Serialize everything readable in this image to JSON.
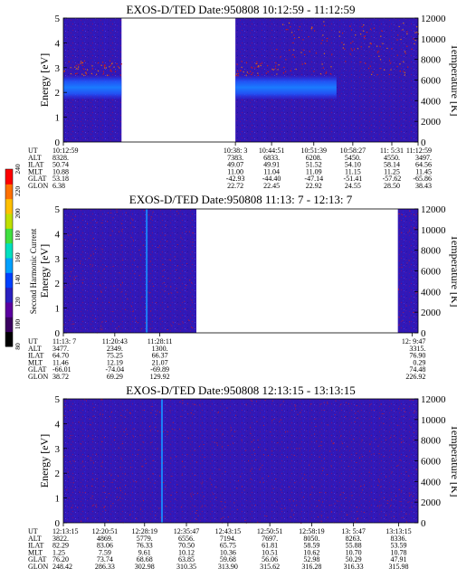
{
  "colorbar": {
    "label": "Second Harmonic Current",
    "ticks": [
      "80",
      "100",
      "120",
      "140",
      "160",
      "180",
      "200",
      "220",
      "240"
    ],
    "colors": [
      "#000000",
      "#3a0060",
      "#5a00a0",
      "#2a20c0",
      "#0040ff",
      "#00a0ff",
      "#00e0c0",
      "#40e040",
      "#c0e000",
      "#ffc000",
      "#ff7000",
      "#ff0000"
    ]
  },
  "chart_data": [
    {
      "type": "heatmap",
      "title": "EXOS-D/TED   Date:950808   10:12:59 - 11:12:59",
      "ylabel": "Energy [eV]",
      "y2label": "Temperature [K]",
      "ylim": [
        0,
        5
      ],
      "y2lim": [
        0,
        12000
      ],
      "yticks": [
        "0",
        "1",
        "2",
        "3",
        "4",
        "5"
      ],
      "y2ticks": [
        "0",
        "2000",
        "4000",
        "6000",
        "8000",
        "10000",
        "12000"
      ],
      "data_segments": [
        [
          0,
          0.164
        ],
        [
          0.485,
          1.0
        ]
      ],
      "band": {
        "center": 2.2,
        "width": 0.5,
        "end": 0.77
      },
      "table": {
        "row_labels": [
          "UT",
          "ALT",
          "ILAT",
          "MLT",
          "GLAT",
          "GLON"
        ],
        "columns": [
          {
            "x": 0.0,
            "values": [
              "10:12:59",
              "8328.",
              "50.74",
              "10.88",
              "53.18",
              "6.38"
            ]
          },
          {
            "x": 0.485,
            "values": [
              "10:38: 3",
              "7383.",
              "49.07",
              "11.00",
              "-42.93",
              "22.72"
            ]
          },
          {
            "x": 0.587,
            "values": [
              "10:44:51",
              "6833.",
              "49.91",
              "11.04",
              "-44.40",
              "22.45"
            ]
          },
          {
            "x": 0.706,
            "values": [
              "10:51:39",
              "6208.",
              "51.52",
              "11.09",
              "-47.14",
              "22.92"
            ]
          },
          {
            "x": 0.816,
            "values": [
              "10:58:27",
              "5450.",
              "54.10",
              "11.15",
              "-51.41",
              "24.55"
            ]
          },
          {
            "x": 0.926,
            "values": [
              "11: 5:31",
              "4550.",
              "58.14",
              "11.25",
              "-57.62",
              "28.50"
            ]
          },
          {
            "x": 1.0,
            "values": [
              "11:12:59",
              "3497.",
              "64.56",
              "11.45",
              "-65.86",
              "38.43"
            ]
          }
        ]
      }
    },
    {
      "type": "heatmap",
      "title": "EXOS-D/TED   Date:950808   11:13: 7 - 12:13: 7",
      "ylabel": "Energy [eV]",
      "y2label": "Temperature [K]",
      "ylim": [
        0,
        5
      ],
      "y2lim": [
        0,
        12000
      ],
      "yticks": [
        "0",
        "1",
        "2",
        "3",
        "4",
        "5"
      ],
      "y2ticks": [
        "0",
        "2000",
        "4000",
        "6000",
        "8000",
        "10000",
        "12000"
      ],
      "data_segments": [
        [
          0,
          0.375
        ],
        [
          0.943,
          1.0
        ]
      ],
      "spike": 0.235,
      "table": {
        "row_labels": [
          "UT",
          "ALT",
          "ILAT",
          "MLT",
          "GLAT",
          "GLON"
        ],
        "columns": [
          {
            "x": 0.0,
            "values": [
              "11:13: 7",
              "3477.",
              "64.70",
              "11.46",
              "-66.01",
              "38.72"
            ]
          },
          {
            "x": 0.145,
            "values": [
              "11:20:43",
              "2349.",
              "75.25",
              "12.19",
              "-74.04",
              "69.29"
            ]
          },
          {
            "x": 0.272,
            "values": [
              "11:28:11",
              "1300.",
              "66.37",
              "21.07",
              "-69.89",
              "129.92"
            ]
          },
          {
            "x": 0.983,
            "values": [
              "12: 9:47",
              "3315.",
              "76.90",
              "0.29",
              "74.48",
              "226.92"
            ]
          }
        ]
      }
    },
    {
      "type": "heatmap",
      "title": "EXOS-D/TED   Date:950808   12:13:15 - 13:13:15",
      "ylabel": "Energy [eV]",
      "y2label": "Temperature [K]",
      "ylim": [
        0,
        5
      ],
      "y2lim": [
        0,
        12000
      ],
      "yticks": [
        "0",
        "1",
        "2",
        "3",
        "4",
        "5"
      ],
      "y2ticks": [
        "0",
        "2000",
        "4000",
        "6000",
        "8000",
        "10000",
        "12000"
      ],
      "data_segments": [
        [
          0,
          1.0
        ]
      ],
      "spike": 0.278,
      "table": {
        "row_labels": [
          "UT",
          "ALT",
          "ILAT",
          "MLT",
          "GLAT",
          "GLON"
        ],
        "columns": [
          {
            "x": 0.0,
            "values": [
              "12:13:15",
              "3822.",
              "82.29",
              "1.25",
              "76.20",
              "248.42"
            ]
          },
          {
            "x": 0.117,
            "values": [
              "12:20:51",
              "4869.",
              "83.06",
              "7.59",
              "73.74",
              "286.33"
            ]
          },
          {
            "x": 0.229,
            "values": [
              "12:28:19",
              "5779.",
              "76.33",
              "9.61",
              "68.68",
              "302.98"
            ]
          },
          {
            "x": 0.347,
            "values": [
              "12:35:47",
              "6556.",
              "70.50",
              "10.12",
              "63.85",
              "310.35"
            ]
          },
          {
            "x": 0.464,
            "values": [
              "12:43:15",
              "7194.",
              "65.75",
              "10.36",
              "59.68",
              "313.90"
            ]
          },
          {
            "x": 0.582,
            "values": [
              "12:50:51",
              "7697.",
              "61.81",
              "10.51",
              "56.06",
              "315.62"
            ]
          },
          {
            "x": 0.7,
            "values": [
              "12:58:19",
              "8050.",
              "58.59",
              "10.62",
              "52.98",
              "316.28"
            ]
          },
          {
            "x": 0.818,
            "values": [
              "13: 5:47",
              "8263.",
              "55.88",
              "10.70",
              "50.29",
              "316.33"
            ]
          },
          {
            "x": 0.945,
            "values": [
              "13:13:15",
              "8336.",
              "53.59",
              "10.78",
              "47.91",
              "315.98"
            ]
          }
        ]
      }
    }
  ]
}
